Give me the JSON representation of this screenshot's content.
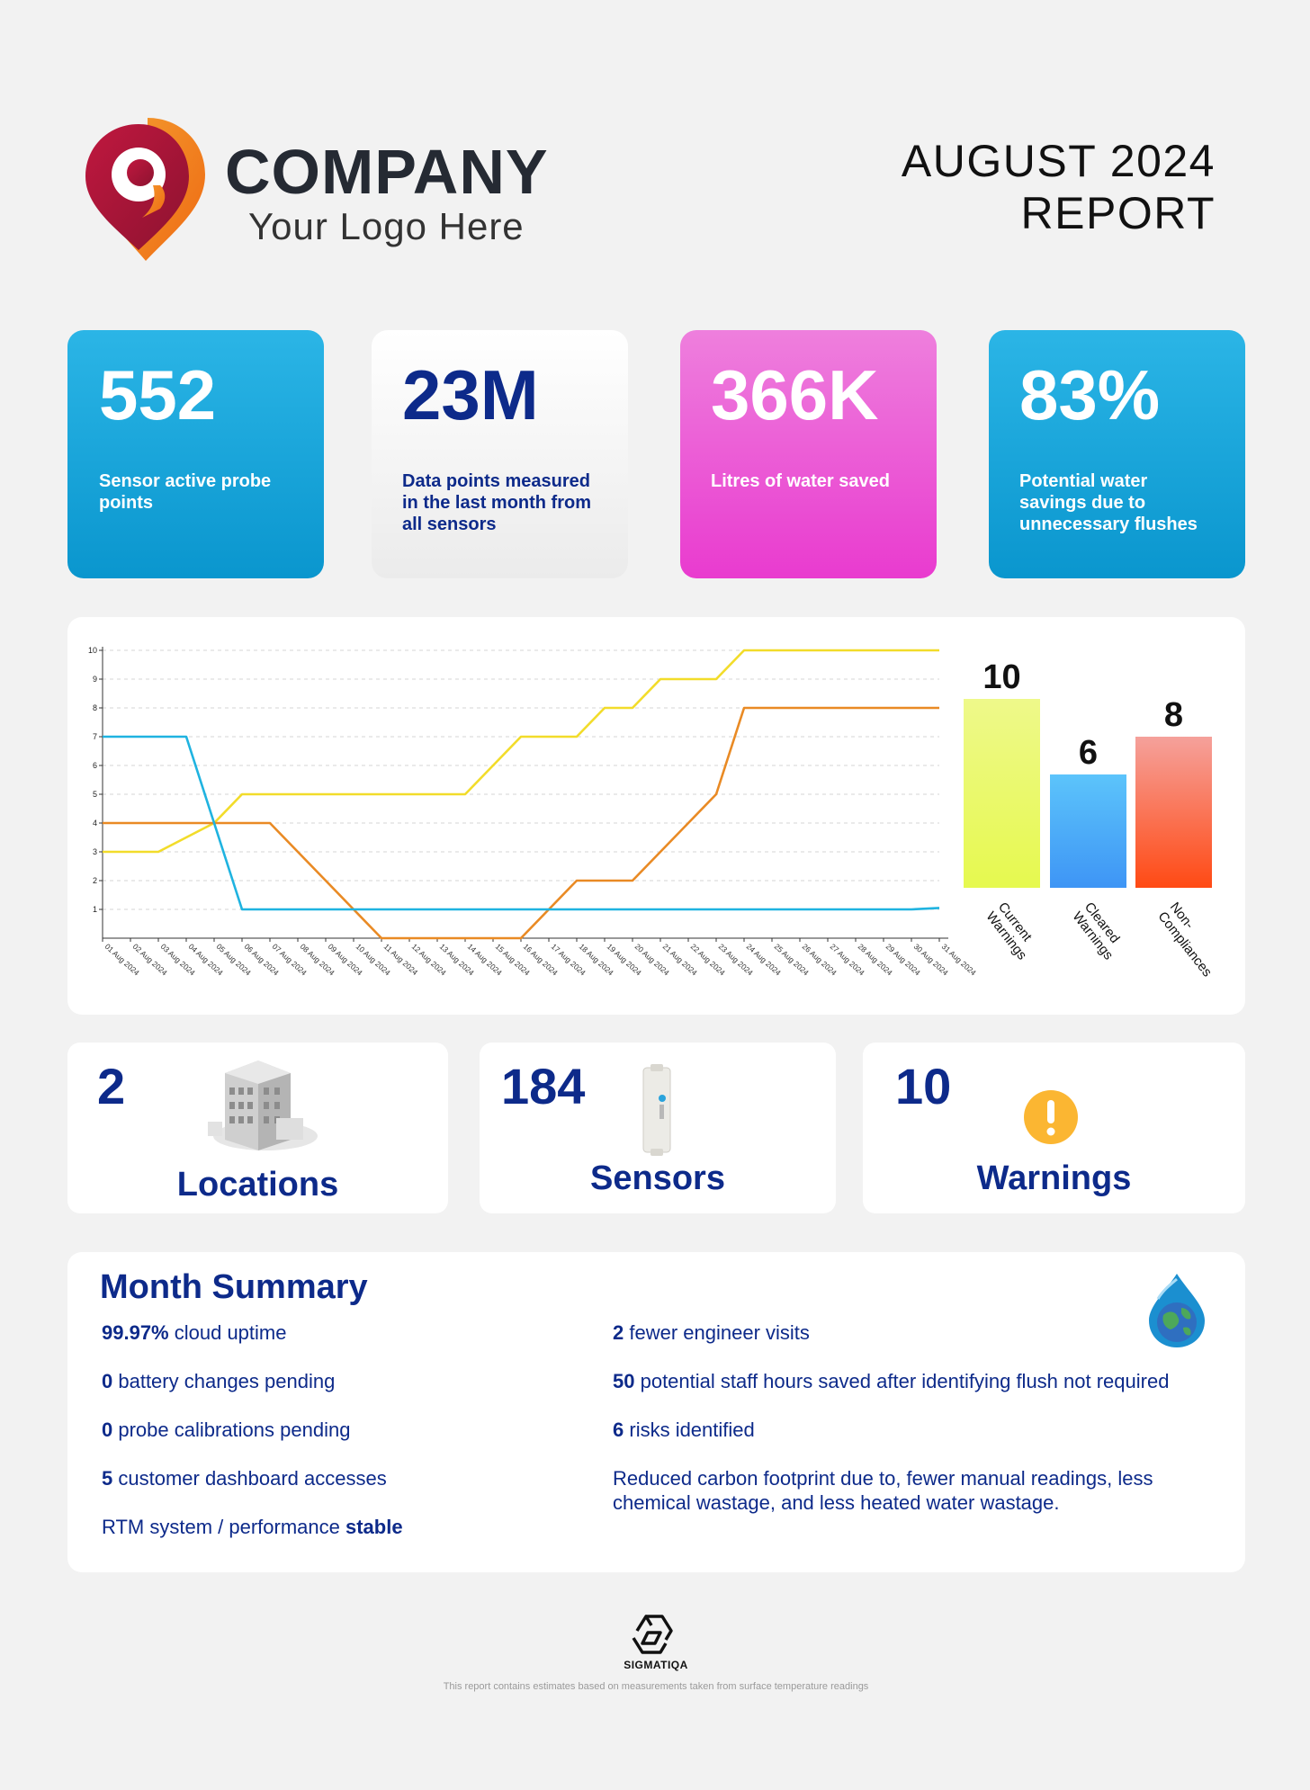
{
  "header": {
    "company_name": "COMPANY",
    "tagline": "Your Logo Here",
    "report_title_line1": "AUGUST 2024",
    "report_title_line2": "REPORT"
  },
  "kpis": [
    {
      "value": "552",
      "label": "Sensor active probe points"
    },
    {
      "value": "23M",
      "label": "Data points measured in the last month from all sensors"
    },
    {
      "value": "366K",
      "label": "Litres of water saved"
    },
    {
      "value": "83%",
      "label": "Potential water savings due to unnecessary flushes"
    }
  ],
  "chart_data": [
    {
      "type": "line",
      "x": [
        "01 Aug 2024",
        "02 Aug 2024",
        "03 Aug 2024",
        "04 Aug 2024",
        "05 Aug 2024",
        "06 Aug 2024",
        "07 Aug 2024",
        "08 Aug 2024",
        "09 Aug 2024",
        "10 Aug 2024",
        "11 Aug 2024",
        "12 Aug 2024",
        "13 Aug 2024",
        "14 Aug 2024",
        "15 Aug 2024",
        "16 Aug 2024",
        "17 Aug 2024",
        "18 Aug 2024",
        "19 Aug 2024",
        "20 Aug 2024",
        "21 Aug 2024",
        "22 Aug 2024",
        "23 Aug 2024",
        "24 Aug 2024",
        "25 Aug 2024",
        "26 Aug 2024",
        "27 Aug 2024",
        "28 Aug 2024",
        "29 Aug 2024",
        "30 Aug 2024",
        "31 Aug 2024"
      ],
      "ylim": [
        0,
        10
      ],
      "yticks": [
        1,
        2,
        3,
        4,
        5,
        6,
        7,
        8,
        9,
        10
      ],
      "grid": true,
      "series": [
        {
          "color": "#f2dc2a",
          "values": [
            3,
            3,
            3,
            3.5,
            4,
            5,
            5,
            5,
            5,
            5,
            5,
            5,
            5,
            5,
            6,
            7,
            7,
            7,
            8,
            8,
            9,
            9,
            9,
            10,
            10,
            10,
            10,
            10,
            10,
            10,
            10
          ]
        },
        {
          "color": "#e98a24",
          "values": [
            4,
            4,
            4,
            4,
            4,
            4,
            4,
            3,
            2,
            1,
            0,
            0,
            0,
            0,
            0,
            0,
            1,
            2,
            2,
            2,
            3,
            4,
            5,
            8,
            8,
            8,
            8,
            8,
            8,
            8,
            8
          ]
        },
        {
          "color": "#1fb3e0",
          "values": [
            7,
            7,
            7,
            7,
            4,
            1,
            1,
            1,
            1,
            1,
            1,
            1,
            1,
            1,
            1,
            1,
            1,
            1,
            1,
            1,
            1,
            1,
            1,
            1,
            1,
            1,
            1,
            1,
            1,
            1,
            1.05
          ]
        }
      ]
    },
    {
      "type": "bar",
      "categories": [
        "Current Warnings",
        "Cleared Warnings",
        "Non-Compliances"
      ],
      "values": [
        10,
        6,
        8
      ],
      "colors": [
        [
          "#eef98a",
          "#e6f94f"
        ],
        [
          "#5cc4fb",
          "#3e95f5"
        ],
        [
          "#f5a19b",
          "#ff4a14"
        ]
      ]
    }
  ],
  "stats": {
    "locations": {
      "value": "2",
      "label": "Locations"
    },
    "sensors": {
      "value": "184",
      "label": "Sensors"
    },
    "warnings": {
      "value": "10",
      "label": "Warnings"
    }
  },
  "summary": {
    "title": "Month Summary",
    "left": [
      {
        "bold": "99.97%",
        "text": " cloud uptime"
      },
      {
        "bold": "0",
        "text": " battery changes pending"
      },
      {
        "bold": "0",
        "text": " probe calibrations pending"
      },
      {
        "bold": "5",
        "text": " customer dashboard accesses"
      },
      {
        "text": "RTM system / performance ",
        "bold_after": "stable"
      }
    ],
    "right": [
      {
        "bold": "2",
        "text": " fewer engineer visits"
      },
      {
        "bold": "50",
        "text": " potential staff hours saved after identifying flush not required"
      },
      {
        "bold": "6",
        "text": " risks identified"
      },
      {
        "text": "Reduced carbon footprint due to, fewer manual readings, less chemical wastage, and less heated water wastage."
      }
    ]
  },
  "footer": {
    "brand": "SIGMATIQA",
    "disclaimer": "This report contains estimates based on measurements taken from surface temperature readings"
  },
  "icons": {
    "logo": "location-pin-logo-icon",
    "locations": "building-icon",
    "sensors": "sensor-device-icon",
    "warnings": "exclamation-warning-icon",
    "summary": "water-drop-globe-icon",
    "brand": "sigmatiqa-logo-icon"
  }
}
